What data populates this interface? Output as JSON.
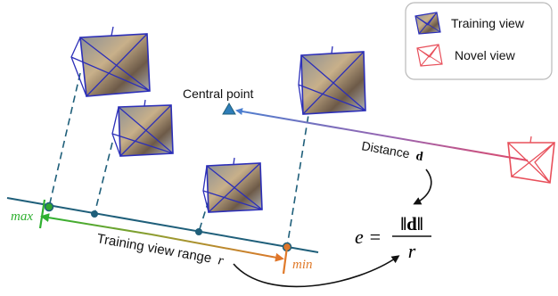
{
  "legend": {
    "training_label": "Training view",
    "novel_label": "Novel view"
  },
  "labels": {
    "central_point": "Central point",
    "distance": "Distance",
    "distance_symbol": "d",
    "training_range": "Training view range",
    "training_range_symbol": "r",
    "max": "max",
    "min": "min"
  },
  "formula": {
    "lhs": "e =",
    "numerator": "‖d‖",
    "denominator": "r"
  },
  "colors": {
    "training_camera": "#2c2fb8",
    "novel_camera": "#e8505b",
    "baseline": "#1f5f7a",
    "max_marker": "#2fa52f",
    "min_marker": "#e07a2a",
    "central_point": "#2e7db8"
  }
}
